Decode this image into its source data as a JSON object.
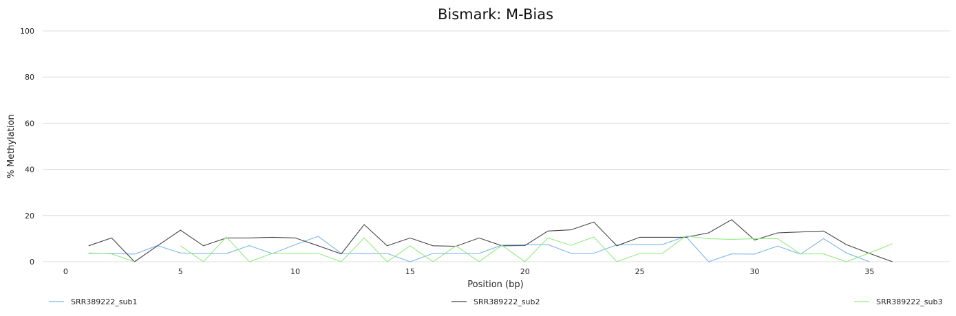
{
  "chart_data": {
    "type": "line",
    "title": "Bismark: M-Bias",
    "xlabel": "Position (bp)",
    "ylabel": "% Methylation",
    "xlim": [
      -1,
      38.5
    ],
    "ylim": [
      0,
      100
    ],
    "x_ticks": [
      "0",
      "5",
      "10",
      "15",
      "20",
      "25",
      "30",
      "35"
    ],
    "x_tick_values": [
      0,
      5,
      10,
      15,
      20,
      25,
      30,
      35
    ],
    "y_ticks": [
      "0",
      "20",
      "40",
      "60",
      "80",
      "100"
    ],
    "y_tick_values": [
      0,
      20,
      40,
      60,
      80,
      100
    ],
    "grid": true,
    "legend_position": "bottom",
    "x": [
      1,
      2,
      3,
      4,
      5,
      6,
      7,
      8,
      9,
      10,
      11,
      12,
      13,
      14,
      15,
      16,
      17,
      18,
      19,
      20,
      21,
      22,
      23,
      24,
      25,
      26,
      27,
      28,
      29,
      30,
      31,
      32,
      33,
      34,
      35,
      36
    ],
    "series": [
      {
        "name": "SRR389222_sub1",
        "color": "#7cb5ec",
        "values": [
          3.6,
          3.6,
          3.3,
          7.0,
          3.8,
          3.5,
          3.5,
          7.0,
          3.5,
          7.4,
          11.0,
          3.6,
          3.4,
          3.6,
          0.0,
          3.6,
          3.5,
          3.6,
          7.2,
          7.4,
          7.4,
          3.7,
          3.7,
          7.3,
          7.5,
          7.5,
          11.0,
          0.0,
          3.4,
          3.3,
          6.8,
          3.3,
          10.0,
          3.8,
          0.0,
          null
        ]
      },
      {
        "name": "SRR389222_sub2",
        "color": "#434348",
        "values": [
          6.9,
          10.3,
          0.0,
          6.9,
          13.7,
          6.9,
          10.3,
          10.3,
          10.6,
          10.3,
          6.9,
          3.4,
          16.1,
          6.9,
          10.3,
          6.9,
          6.7,
          10.3,
          6.9,
          7.0,
          13.3,
          13.8,
          17.2,
          6.9,
          10.6,
          10.6,
          10.6,
          12.5,
          18.2,
          9.4,
          12.5,
          12.9,
          13.3,
          7.4,
          3.6,
          0.0
        ]
      },
      {
        "name": "SRR389222_sub3",
        "color": "#90ed7d",
        "values": [
          3.8,
          3.4,
          0.0,
          null,
          6.9,
          0.0,
          10.7,
          0.0,
          3.6,
          3.6,
          3.6,
          0.0,
          10.3,
          0.0,
          6.9,
          0.0,
          6.9,
          0.0,
          7.1,
          0.0,
          10.3,
          7.1,
          10.7,
          0.0,
          3.6,
          3.7,
          11.1,
          10.0,
          9.7,
          10.0,
          10.0,
          3.4,
          3.4,
          0.0,
          3.8,
          7.8
        ]
      }
    ]
  }
}
